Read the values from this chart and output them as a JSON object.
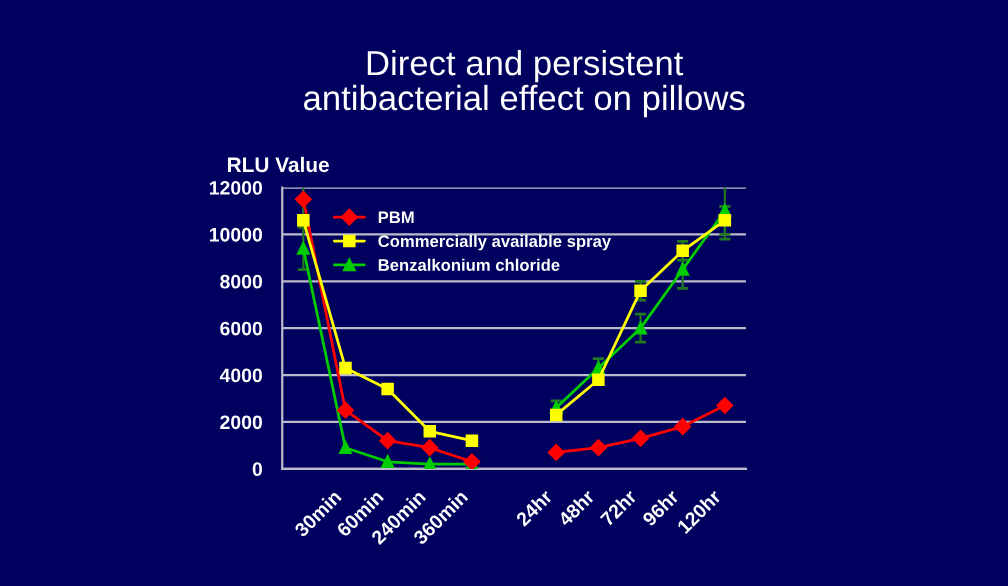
{
  "chart_data": {
    "type": "line",
    "title": "Direct and persistent\nantibacterial effect on pillows",
    "ylabel": "RLU Value",
    "categories": [
      null,
      "30min",
      "60min",
      "240min",
      "360min",
      null,
      "24hr",
      "48hr",
      "72hr",
      "96hr",
      "120hr"
    ],
    "series": [
      {
        "name": "PBM",
        "color": "#ff0000",
        "marker": "diamond",
        "values": [
          11500,
          2500,
          1200,
          900,
          300,
          null,
          700,
          900,
          1300,
          1800,
          2700
        ],
        "errors": [
          700,
          null,
          null,
          null,
          null,
          null,
          null,
          null,
          null,
          null,
          null
        ]
      },
      {
        "name": "Commercially available spray",
        "color": "#ffff00",
        "marker": "square",
        "values": [
          10600,
          4300,
          3400,
          1600,
          1200,
          null,
          2300,
          3800,
          7600,
          9300,
          10600
        ],
        "errors": [
          null,
          null,
          null,
          null,
          null,
          null,
          null,
          null,
          400,
          400,
          600
        ]
      },
      {
        "name": "Benzalkonium chloride",
        "color": "#00cc00",
        "marker": "triangle",
        "values": [
          9400,
          900,
          300,
          200,
          200,
          null,
          2600,
          4300,
          6000,
          8500,
          11000
        ],
        "errors": [
          900,
          null,
          null,
          null,
          null,
          null,
          300,
          400,
          600,
          800,
          1200
        ]
      }
    ],
    "ylim": [
      0,
      12000
    ],
    "yticks": [
      0,
      2000,
      4000,
      6000,
      8000,
      10000,
      12000
    ],
    "grid": "y",
    "legend": "top left"
  }
}
